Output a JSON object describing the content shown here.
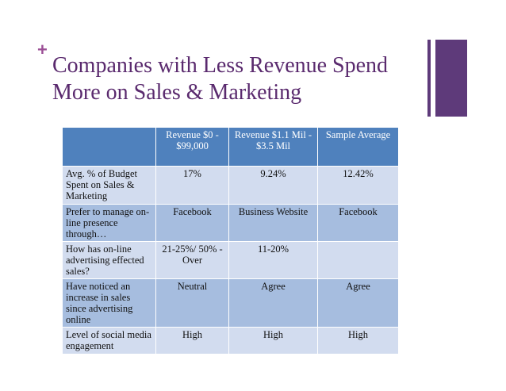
{
  "slide": {
    "bullet": "+",
    "title": "Companies with Less Revenue Spend More on Sales & Marketing"
  },
  "table": {
    "headers": [
      "",
      "Revenue $0 - $99,000",
      "Revenue $1.1 Mil - $3.5 Mil",
      "Sample Average"
    ],
    "rows": [
      {
        "label": "Avg. % of Budget Spent on Sales & Marketing",
        "values": [
          "17%",
          "9.24%",
          "12.42%"
        ]
      },
      {
        "label": "Prefer to manage on-line presence through…",
        "values": [
          "Facebook",
          "Business Website",
          "Facebook"
        ]
      },
      {
        "label": "How has on-line advertising effected sales?",
        "values": [
          "21-25%/ 50% - Over",
          "11-20%",
          ""
        ]
      },
      {
        "label": "Have noticed an increase in sales since advertising online",
        "values": [
          "Neutral",
          "Agree",
          "Agree"
        ]
      },
      {
        "label": "Level of social media engagement",
        "values": [
          "High",
          "High",
          "High"
        ]
      }
    ]
  }
}
